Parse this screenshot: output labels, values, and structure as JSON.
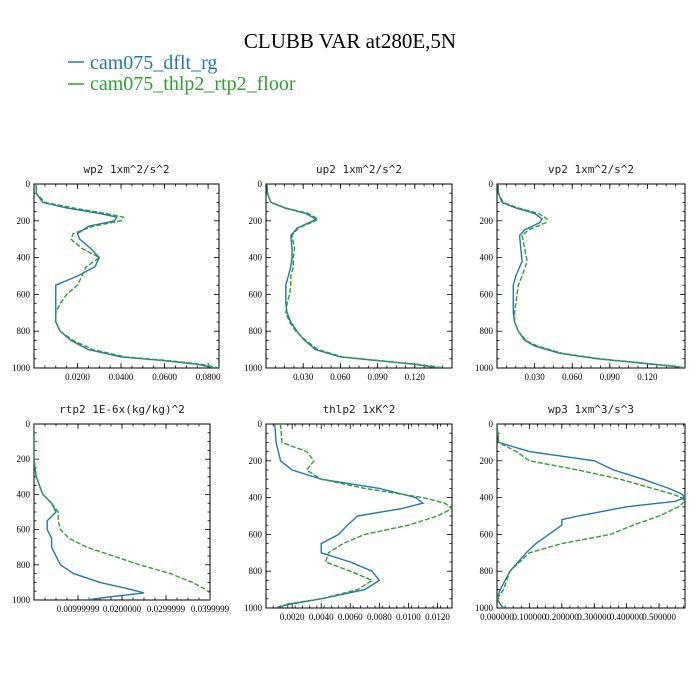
{
  "figure": {
    "title": "CLUBB VAR at280E,5N",
    "legend": [
      {
        "label": "cam075_dflt_rg",
        "color": "#1f77b4",
        "dash": "solid"
      },
      {
        "label": "cam075_thlp2_rtp2_floor",
        "color": "#2ca02c",
        "dash": "dashed"
      }
    ]
  },
  "chart_data": [
    {
      "type": "line",
      "title": "wp2  1xm^2/s^2",
      "xlim": [
        0,
        0.085
      ],
      "ylim": [
        1000,
        0
      ],
      "xticks": [
        0.02,
        0.04,
        0.06,
        0.08
      ],
      "xtick_labels": [
        "0.0200",
        "0.0400",
        "0.0600",
        "0.0800"
      ],
      "yticks": [
        0,
        200,
        400,
        600,
        800,
        1000
      ],
      "ytick_labels": [
        "0",
        "200",
        "400",
        "600",
        "800",
        "1000"
      ],
      "series": [
        {
          "name": "cam075_dflt_rg",
          "y": [
            0,
            50,
            100,
            130,
            160,
            180,
            200,
            230,
            270,
            300,
            350,
            400,
            450,
            500,
            550,
            600,
            650,
            700,
            750,
            800,
            850,
            900,
            940,
            960,
            980,
            1000
          ],
          "x": [
            0.001,
            0.001,
            0.004,
            0.015,
            0.03,
            0.038,
            0.037,
            0.025,
            0.02,
            0.021,
            0.026,
            0.03,
            0.028,
            0.02,
            0.01,
            0.01,
            0.01,
            0.01,
            0.01,
            0.012,
            0.017,
            0.025,
            0.04,
            0.06,
            0.075,
            0.083
          ]
        },
        {
          "name": "cam075_thlp2_rtp2_floor",
          "y": [
            0,
            50,
            100,
            130,
            160,
            180,
            200,
            230,
            270,
            300,
            350,
            400,
            450,
            500,
            550,
            600,
            650,
            700,
            750,
            800,
            850,
            900,
            940,
            960,
            980,
            1000
          ],
          "x": [
            0.001,
            0.001,
            0.005,
            0.018,
            0.033,
            0.041,
            0.04,
            0.027,
            0.018,
            0.017,
            0.022,
            0.03,
            0.024,
            0.022,
            0.02,
            0.015,
            0.012,
            0.01,
            0.01,
            0.012,
            0.018,
            0.027,
            0.042,
            0.062,
            0.077,
            0.085
          ]
        }
      ]
    },
    {
      "type": "line",
      "title": "up2  1xm^2/s^2",
      "xlim": [
        0,
        0.15
      ],
      "ylim": [
        1000,
        0
      ],
      "xticks": [
        0.03,
        0.06,
        0.09,
        0.12
      ],
      "xtick_labels": [
        "0.030",
        "0.060",
        "0.090",
        "0.120"
      ],
      "yticks": [
        0,
        200,
        400,
        600,
        800,
        1000
      ],
      "ytick_labels": [
        "0",
        "200",
        "400",
        "600",
        "800",
        "1000"
      ],
      "series": [
        {
          "name": "cam075_dflt_rg",
          "y": [
            0,
            50,
            100,
            130,
            160,
            190,
            200,
            240,
            280,
            350,
            400,
            450,
            500,
            550,
            600,
            650,
            700,
            750,
            800,
            850,
            900,
            940,
            960,
            980,
            1000
          ],
          "x": [
            0.001,
            0.001,
            0.004,
            0.015,
            0.032,
            0.04,
            0.038,
            0.025,
            0.02,
            0.021,
            0.021,
            0.02,
            0.018,
            0.016,
            0.016,
            0.016,
            0.017,
            0.02,
            0.025,
            0.031,
            0.04,
            0.06,
            0.09,
            0.12,
            0.14
          ]
        },
        {
          "name": "cam075_thlp2_rtp2_floor",
          "y": [
            0,
            50,
            100,
            130,
            160,
            190,
            200,
            240,
            280,
            350,
            400,
            450,
            500,
            550,
            600,
            650,
            700,
            750,
            800,
            850,
            900,
            940,
            960,
            980,
            1000
          ],
          "x": [
            0.001,
            0.001,
            0.004,
            0.016,
            0.034,
            0.042,
            0.04,
            0.026,
            0.021,
            0.023,
            0.022,
            0.022,
            0.02,
            0.02,
            0.019,
            0.017,
            0.016,
            0.019,
            0.024,
            0.032,
            0.042,
            0.062,
            0.092,
            0.122,
            0.145
          ]
        }
      ]
    },
    {
      "type": "line",
      "title": "vp2  1xm^2/s^2",
      "xlim": [
        0,
        0.15
      ],
      "ylim": [
        1000,
        0
      ],
      "xticks": [
        0.03,
        0.06,
        0.09,
        0.12
      ],
      "xtick_labels": [
        "0.030",
        "0.060",
        "0.090",
        "0.120"
      ],
      "yticks": [
        0,
        200,
        400,
        600,
        800,
        1000
      ],
      "ytick_labels": [
        "0",
        "200",
        "400",
        "600",
        "800",
        "1000"
      ],
      "series": [
        {
          "name": "cam075_dflt_rg",
          "y": [
            0,
            50,
            100,
            130,
            160,
            190,
            210,
            250,
            280,
            350,
            420,
            500,
            550,
            600,
            650,
            700,
            750,
            800,
            850,
            880,
            920,
            950,
            970,
            990,
            1000
          ],
          "x": [
            0.001,
            0.001,
            0.004,
            0.015,
            0.03,
            0.036,
            0.034,
            0.022,
            0.018,
            0.019,
            0.02,
            0.015,
            0.013,
            0.013,
            0.013,
            0.013,
            0.014,
            0.017,
            0.022,
            0.03,
            0.05,
            0.08,
            0.11,
            0.14,
            0.15
          ]
        },
        {
          "name": "cam075_thlp2_rtp2_floor",
          "y": [
            0,
            50,
            100,
            130,
            160,
            190,
            210,
            250,
            280,
            350,
            420,
            500,
            550,
            600,
            650,
            700,
            750,
            800,
            850,
            880,
            920,
            950,
            970,
            990,
            1000
          ],
          "x": [
            0.001,
            0.001,
            0.005,
            0.017,
            0.033,
            0.04,
            0.039,
            0.025,
            0.02,
            0.022,
            0.024,
            0.02,
            0.017,
            0.016,
            0.015,
            0.014,
            0.014,
            0.017,
            0.023,
            0.032,
            0.052,
            0.082,
            0.112,
            0.142,
            0.15
          ]
        }
      ]
    },
    {
      "type": "line",
      "title": "rtp2  1E-6x(kg/kg)^2",
      "xlim": [
        0,
        0.04
      ],
      "ylim": [
        1000,
        0
      ],
      "xticks": [
        0.01,
        0.02,
        0.03,
        0.04
      ],
      "xtick_labels": [
        "0.00999999",
        "0.0200000",
        "0.0299999",
        "0.0399999"
      ],
      "yticks": [
        0,
        200,
        400,
        600,
        800,
        1000
      ],
      "ytick_labels": [
        "0",
        "200",
        "400",
        "600",
        "800",
        "1000"
      ],
      "series": [
        {
          "name": "cam075_dflt_rg",
          "y": [
            0,
            100,
            200,
            300,
            400,
            450,
            500,
            550,
            600,
            650,
            700,
            750,
            800,
            850,
            900,
            940,
            960,
            980,
            1000
          ],
          "x": [
            0,
            0,
            0,
            0.0005,
            0.002,
            0.004,
            0.005,
            0.003,
            0.003,
            0.004,
            0.004,
            0.005,
            0.006,
            0.009,
            0.015,
            0.022,
            0.025,
            0.018,
            0.012
          ]
        },
        {
          "name": "cam075_thlp2_rtp2_floor",
          "y": [
            0,
            100,
            200,
            300,
            400,
            450,
            500,
            550,
            600,
            650,
            700,
            750,
            800,
            850,
            900,
            940,
            960,
            980,
            1000
          ],
          "x": [
            0,
            0,
            0,
            0.0005,
            0.002,
            0.004,
            0.0055,
            0.0055,
            0.006,
            0.008,
            0.012,
            0.018,
            0.024,
            0.031,
            0.036,
            0.039,
            0.04,
            0.04,
            0.04
          ]
        }
      ]
    },
    {
      "type": "line",
      "title": "thlp2  1xK^2",
      "xlim": [
        0.0002,
        0.013
      ],
      "ylim": [
        1000,
        0
      ],
      "xticks": [
        0.002,
        0.004,
        0.006,
        0.008,
        0.01,
        0.012
      ],
      "xtick_labels": [
        "0.0020",
        "0.0040",
        "0.0060",
        "0.0080",
        "0.0100",
        "0.0120"
      ],
      "yticks": [
        0,
        200,
        400,
        600,
        800,
        1000
      ],
      "ytick_labels": [
        "0",
        "200",
        "400",
        "600",
        "800",
        "1000"
      ],
      "series": [
        {
          "name": "cam075_dflt_rg",
          "y": [
            0,
            100,
            200,
            250,
            300,
            350,
            400,
            430,
            460,
            500,
            550,
            600,
            650,
            700,
            750,
            800,
            850,
            900,
            950,
            980,
            1000
          ],
          "x": [
            0.0008,
            0.0009,
            0.0012,
            0.002,
            0.004,
            0.008,
            0.0105,
            0.011,
            0.0095,
            0.0065,
            0.0058,
            0.0052,
            0.004,
            0.004,
            0.006,
            0.0075,
            0.008,
            0.007,
            0.004,
            0.0018,
            0.0008
          ]
        },
        {
          "name": "cam075_thlp2_rtp2_floor",
          "y": [
            0,
            100,
            150,
            200,
            250,
            300,
            350,
            400,
            430,
            460,
            500,
            550,
            600,
            650,
            700,
            750,
            800,
            850,
            900,
            950,
            980,
            1000
          ],
          "x": [
            0.0012,
            0.0013,
            0.003,
            0.0035,
            0.003,
            0.004,
            0.007,
            0.011,
            0.0125,
            0.013,
            0.012,
            0.01,
            0.007,
            0.0055,
            0.0045,
            0.0043,
            0.006,
            0.0075,
            0.0065,
            0.004,
            0.0015,
            0.0012
          ]
        }
      ]
    },
    {
      "type": "line",
      "title": "wp3  1xm^3/s^3",
      "xlim": [
        0,
        0.58
      ],
      "ylim": [
        1000,
        0
      ],
      "xticks": [
        0,
        0.1,
        0.2,
        0.3,
        0.4,
        0.5
      ],
      "xtick_labels": [
        "0.000000",
        "0.100000",
        "0.200000",
        "0.300000",
        "0.400000",
        "0.500000"
      ],
      "yticks": [
        0,
        200,
        400,
        600,
        800,
        1000
      ],
      "ytick_labels": [
        "0",
        "200",
        "400",
        "600",
        "800",
        "1000"
      ],
      "series": [
        {
          "name": "cam075_dflt_rg",
          "y": [
            0,
            100,
            150,
            200,
            250,
            300,
            350,
            380,
            400,
            420,
            450,
            500,
            520,
            550,
            600,
            650,
            700,
            800,
            900,
            950,
            980,
            1000
          ],
          "x": [
            0,
            0.005,
            0.1,
            0.3,
            0.36,
            0.45,
            0.53,
            0.57,
            0.58,
            0.55,
            0.4,
            0.25,
            0.2,
            0.2,
            0.16,
            0.12,
            0.09,
            0.04,
            0.01,
            0,
            0.01,
            0.02
          ]
        },
        {
          "name": "cam075_thlp2_rtp2_floor",
          "y": [
            0,
            100,
            150,
            200,
            250,
            300,
            350,
            380,
            400,
            420,
            450,
            500,
            550,
            600,
            650,
            700,
            800,
            900,
            950,
            980,
            1000
          ],
          "x": [
            0,
            0.005,
            0.06,
            0.1,
            0.25,
            0.38,
            0.48,
            0.54,
            0.57,
            0.58,
            0.56,
            0.5,
            0.42,
            0.35,
            0.2,
            0.1,
            0.04,
            0.02,
            0,
            0.01,
            0.02
          ]
        }
      ]
    }
  ]
}
